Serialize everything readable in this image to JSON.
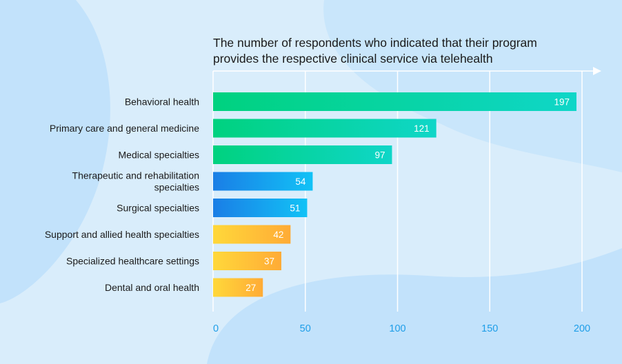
{
  "chart_data": {
    "type": "bar",
    "orientation": "horizontal",
    "title_lines": [
      "The number of respondents who indicated that their program",
      "provides the respective clinical service via telehealth"
    ],
    "categories": [
      [
        "Behavioral health"
      ],
      [
        "Primary care and general medicine"
      ],
      [
        "Medical specialties"
      ],
      [
        "Therapeutic and rehabilitation",
        "specialties"
      ],
      [
        "Surgical specialties"
      ],
      [
        "Support and allied health specialties"
      ],
      [
        "Specialized healthcare settings"
      ],
      [
        "Dental and oral health"
      ]
    ],
    "values": [
      197,
      121,
      97,
      54,
      51,
      42,
      37,
      27
    ],
    "groups": [
      "green",
      "green",
      "green",
      "blue",
      "blue",
      "orange",
      "orange",
      "orange"
    ],
    "xlim": [
      0,
      200
    ],
    "ticks": [
      0,
      50,
      100,
      150,
      200
    ],
    "grid": true,
    "colors": {
      "green": [
        "#00d27f",
        "#0fd6c8"
      ],
      "blue": [
        "#1a7ee6",
        "#12c2f6"
      ],
      "orange": [
        "#ffd83a",
        "#ffab36"
      ],
      "tick_text": "#1e9ee8",
      "grid": "#ffffff"
    }
  }
}
